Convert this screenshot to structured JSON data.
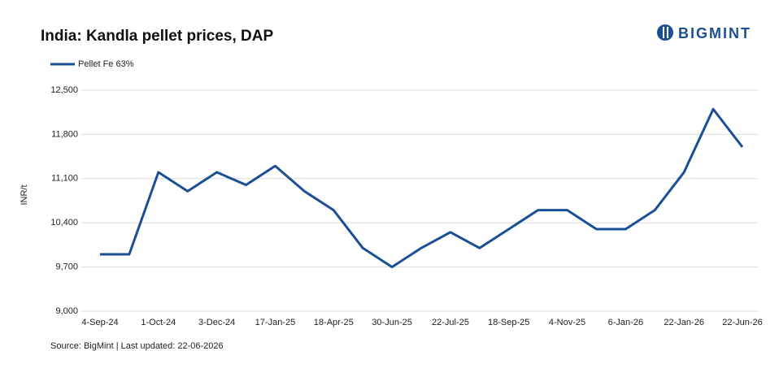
{
  "logo": "BIGMINT",
  "chart_data": {
    "type": "line",
    "title": "India: Kandla pellet prices, DAP",
    "y_label": "INR/t",
    "source": "Source: BigMint | Last updated: 22-06-2026",
    "categories": [
      "4-Sep-24",
      null,
      "1-Oct-24",
      null,
      "3-Dec-24",
      null,
      "17-Jan-25",
      null,
      "18-Apr-25",
      null,
      "30-Jun-25",
      null,
      "22-Jul-25",
      null,
      "18-Sep-25",
      null,
      "4-Nov-25",
      null,
      "6-Jan-26",
      null,
      "22-Jan-26",
      null,
      "22-Jun-26"
    ],
    "series": [
      {
        "name": "Pellet Fe 63%",
        "color": "#1a4f95",
        "values": [
          9900,
          9900,
          11200,
          10900,
          11200,
          11000,
          11300,
          10900,
          10600,
          10000,
          9700,
          10000,
          10250,
          10000,
          10300,
          10600,
          10600,
          10300,
          10300,
          10600,
          11200,
          12200,
          11600
        ]
      }
    ],
    "ylim": [
      9000,
      12500
    ],
    "yticks": [
      {
        "value": 9000,
        "label": "9,000"
      },
      {
        "value": 9700,
        "label": "9,700"
      },
      {
        "value": 10400,
        "label": "10,400"
      },
      {
        "value": 11100,
        "label": "11,100"
      },
      {
        "value": 11800,
        "label": "11,800"
      },
      {
        "value": 12500,
        "label": "12,500"
      }
    ],
    "grid": true
  }
}
